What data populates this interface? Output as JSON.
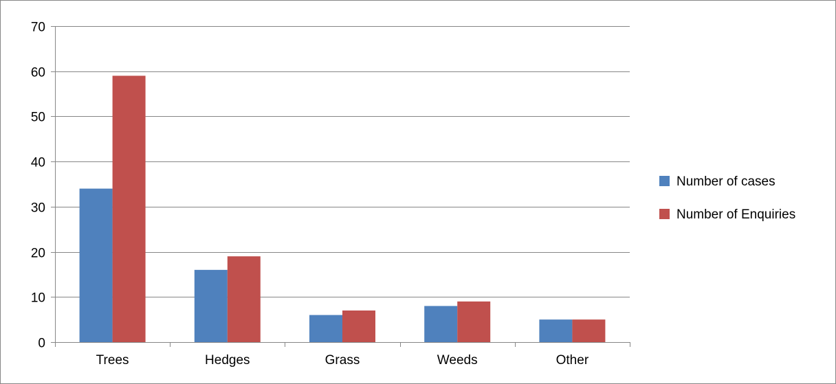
{
  "chart_data": {
    "type": "bar",
    "title": "",
    "xlabel": "",
    "ylabel": "",
    "categories": [
      "Trees",
      "Hedges",
      "Grass",
      "Weeds",
      "Other"
    ],
    "series": [
      {
        "name": "Number of cases",
        "color": "#4F81BD",
        "values": [
          34,
          16,
          6,
          8,
          5
        ]
      },
      {
        "name": "Number of Enquiries",
        "color": "#C0504D",
        "values": [
          59,
          19,
          7,
          9,
          5
        ]
      }
    ],
    "ylim": [
      0,
      70
    ],
    "yticks": [
      "0",
      "10",
      "20",
      "30",
      "40",
      "50",
      "60",
      "70"
    ],
    "grid": true,
    "legend_position": "right"
  }
}
